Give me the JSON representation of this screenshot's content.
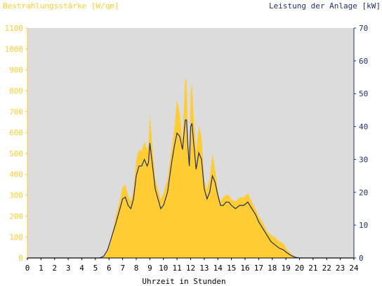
{
  "chart_data": {
    "type": "area",
    "left_axis_title": "Bestrahlungsstärke [W/qm]",
    "right_axis_title": "Leistung der Anlage [kW]",
    "xlabel": "Uhrzeit in Stunden",
    "x_ticks": [
      "0",
      "1",
      "2",
      "3",
      "4",
      "5",
      "6",
      "7",
      "8",
      "9",
      "10",
      "11",
      "12",
      "13",
      "14",
      "15",
      "16",
      "17",
      "18",
      "19",
      "20",
      "21",
      "22",
      "23",
      "24"
    ],
    "left_ylim": [
      0,
      1100
    ],
    "left_ticks": [
      "0",
      "100",
      "200",
      "300",
      "400",
      "500",
      "600",
      "700",
      "800",
      "900",
      "1000",
      "1100"
    ],
    "right_ylim": [
      0,
      70
    ],
    "right_ticks": [
      "0",
      "10",
      "20",
      "30",
      "40",
      "50",
      "60",
      "70"
    ],
    "grid": false,
    "colors": {
      "irradiance": "#ffcc33",
      "power": "#1f2f6b",
      "plot_bg": "#dcdcdc",
      "left_axis": "#ffcc33",
      "right_axis": "#1f2f6b"
    },
    "series": [
      {
        "name": "Bestrahlungsstärke [W/qm]",
        "axis": "left",
        "x": [
          0,
          5.3,
          5.6,
          5.9,
          6.2,
          6.5,
          6.8,
          7.0,
          7.2,
          7.4,
          7.6,
          7.8,
          8.0,
          8.2,
          8.4,
          8.6,
          8.8,
          8.9,
          9.0,
          9.2,
          9.4,
          9.6,
          9.8,
          10.0,
          10.3,
          10.6,
          10.8,
          11.0,
          11.2,
          11.4,
          11.6,
          11.7,
          11.8,
          11.9,
          12.0,
          12.1,
          12.2,
          12.4,
          12.6,
          12.8,
          13.0,
          13.2,
          13.4,
          13.6,
          13.8,
          14.0,
          14.2,
          14.4,
          14.6,
          14.8,
          15.0,
          15.3,
          15.6,
          15.9,
          16.2,
          16.5,
          16.8,
          17.0,
          17.3,
          17.6,
          17.9,
          18.2,
          18.5,
          18.8,
          19.1,
          19.4,
          19.7,
          20.0,
          20.2,
          20.4,
          24
        ],
        "y": [
          0,
          0,
          10,
          40,
          110,
          200,
          280,
          340,
          350,
          300,
          270,
          330,
          470,
          520,
          510,
          560,
          520,
          540,
          690,
          520,
          380,
          330,
          280,
          310,
          380,
          520,
          620,
          760,
          690,
          560,
          860,
          850,
          560,
          460,
          780,
          840,
          700,
          510,
          630,
          580,
          370,
          330,
          380,
          500,
          420,
          320,
          270,
          290,
          300,
          300,
          280,
          270,
          290,
          290,
          310,
          270,
          230,
          200,
          170,
          130,
          110,
          100,
          80,
          70,
          40,
          20,
          5,
          0,
          0,
          0,
          0
        ]
      },
      {
        "name": "Leistung der Anlage [kW]",
        "axis": "right",
        "x": [
          0,
          5.3,
          5.6,
          5.9,
          6.2,
          6.5,
          6.8,
          7.0,
          7.2,
          7.4,
          7.6,
          7.8,
          8.0,
          8.2,
          8.4,
          8.6,
          8.8,
          8.9,
          9.0,
          9.2,
          9.4,
          9.6,
          9.8,
          10.0,
          10.3,
          10.6,
          10.8,
          11.0,
          11.2,
          11.4,
          11.6,
          11.7,
          11.8,
          11.9,
          12.0,
          12.1,
          12.2,
          12.4,
          12.6,
          12.8,
          13.0,
          13.2,
          13.4,
          13.6,
          13.8,
          14.0,
          14.2,
          14.4,
          14.6,
          14.8,
          15.0,
          15.3,
          15.6,
          15.9,
          16.2,
          16.5,
          16.8,
          17.0,
          17.3,
          17.6,
          17.9,
          18.2,
          18.5,
          18.8,
          19.1,
          19.4,
          19.7,
          20.0,
          20.2,
          20.4,
          24
        ],
        "y": [
          0,
          0,
          0.5,
          2.5,
          6.5,
          10.5,
          15,
          18,
          18.5,
          16,
          15,
          18,
          25,
          28,
          28,
          30,
          28,
          29,
          35,
          28,
          21,
          18,
          15,
          16,
          20,
          29,
          34,
          38,
          37,
          33,
          42,
          42,
          34,
          28,
          40,
          41,
          36,
          27,
          32,
          30,
          21,
          18,
          20,
          25,
          23,
          19,
          16,
          16,
          17,
          17,
          16,
          15,
          16,
          16,
          17,
          15,
          13,
          11,
          9,
          7,
          5,
          4,
          3,
          2.5,
          1.5,
          0.7,
          0.2,
          0,
          0,
          0,
          0
        ]
      }
    ]
  }
}
